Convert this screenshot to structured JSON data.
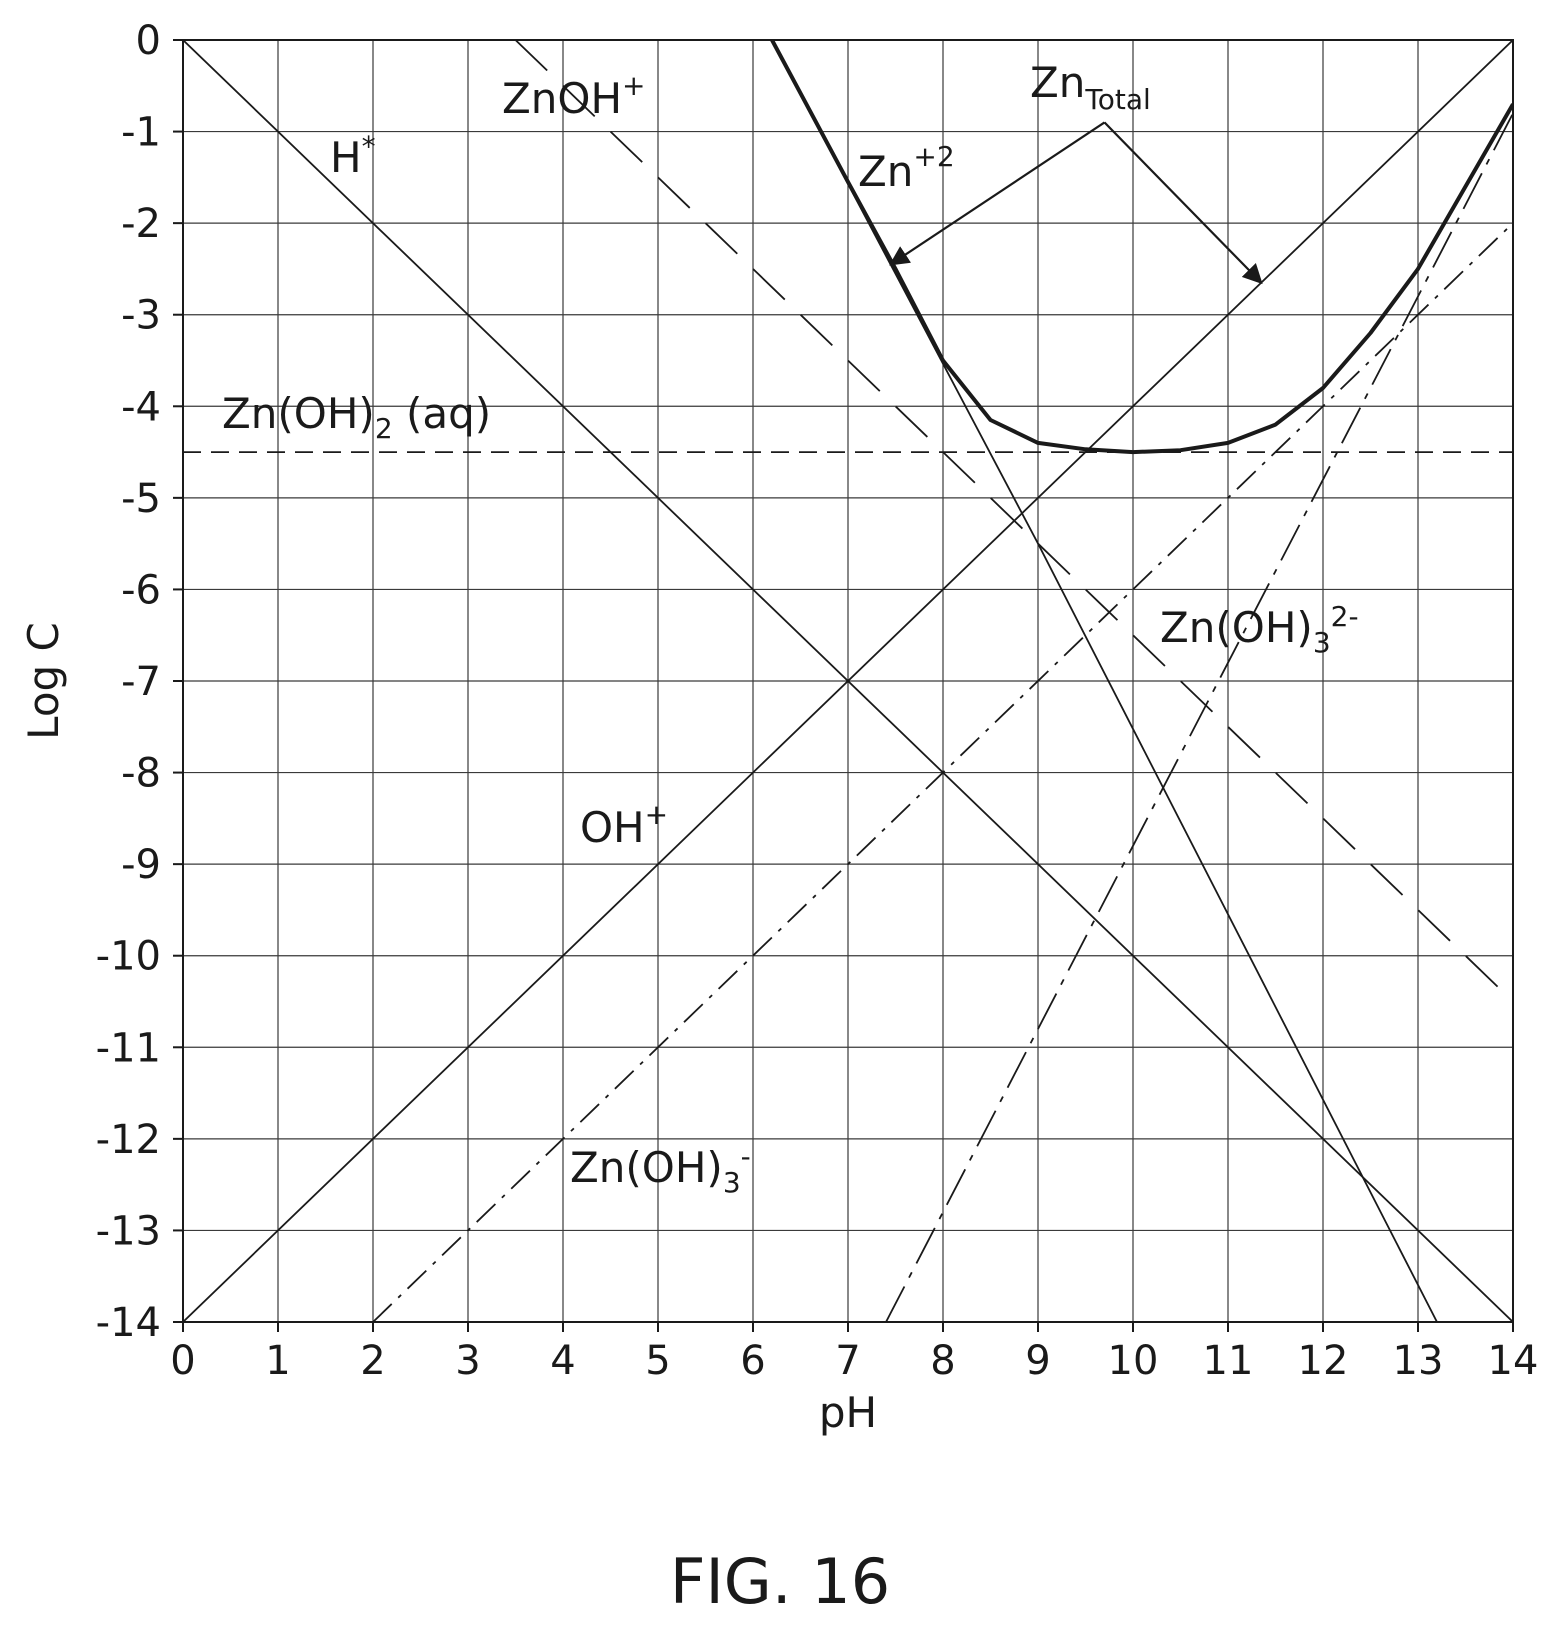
{
  "chart_data": {
    "type": "line",
    "title": "",
    "xlabel": "pH",
    "ylabel": "Log C",
    "xlim": [
      0,
      14
    ],
    "ylim": [
      -14,
      0
    ],
    "grid": true,
    "x_ticks": [
      "0",
      "1",
      "2",
      "3",
      "4",
      "5",
      "6",
      "7",
      "8",
      "9",
      "10",
      "11",
      "12",
      "13",
      "14"
    ],
    "y_ticks": [
      "0",
      "-1",
      "-2",
      "-3",
      "-4",
      "-5",
      "-6",
      "-7",
      "-8",
      "-9",
      "-10",
      "-11",
      "-12",
      "-13",
      "-14"
    ],
    "series": [
      {
        "name": "H*",
        "style": "solid",
        "x": [
          0,
          14
        ],
        "y": [
          0,
          -14
        ]
      },
      {
        "name": "OH+",
        "style": "solid",
        "x": [
          0,
          14
        ],
        "y": [
          -14,
          0
        ]
      },
      {
        "name": "Zn+2",
        "style": "solid",
        "x": [
          6.2,
          9,
          13.2
        ],
        "y": [
          0,
          -5.5,
          -14
        ]
      },
      {
        "name": "ZnOH+",
        "style": "long-dash",
        "x": [
          3.5,
          9.7,
          14
        ],
        "y": [
          0,
          -6.2,
          -10.5
        ]
      },
      {
        "name": "Zn(OH)2 (aq)",
        "style": "dash",
        "x": [
          0,
          14
        ],
        "y": [
          -4.5,
          -4.5
        ]
      },
      {
        "name": "Zn(OH)3-",
        "style": "dash-dot",
        "x": [
          2,
          14
        ],
        "y": [
          -14,
          -2
        ]
      },
      {
        "name": "Zn(OH)3 2-",
        "style": "dash-dot-long",
        "x": [
          7.4,
          14
        ],
        "y": [
          -14,
          -0.8
        ]
      },
      {
        "name": "ZnTotal",
        "style": "bold",
        "x": [
          6.2,
          7,
          7.5,
          8,
          8.5,
          9,
          9.5,
          10,
          10.5,
          11,
          11.5,
          12,
          12.5,
          13,
          13.5,
          14
        ],
        "y": [
          0,
          -1.55,
          -2.5,
          -3.5,
          -4.15,
          -4.4,
          -4.47,
          -4.5,
          -4.48,
          -4.4,
          -4.2,
          -3.8,
          -3.2,
          -2.5,
          -1.6,
          -0.7
        ]
      }
    ],
    "labels": {
      "h": {
        "main": "H",
        "sup": "*"
      },
      "oh": {
        "main": "OH",
        "sup": "+"
      },
      "zn2": {
        "main": "Zn",
        "sup": "+2"
      },
      "znoh": {
        "main": "ZnOH",
        "sup": "+"
      },
      "znoh2": {
        "main": "Zn(OH)",
        "sub": "2",
        "tail": " (aq)"
      },
      "znoh3": {
        "main": "Zn(OH)",
        "sub": "3",
        "sup": "-"
      },
      "znoh3b": {
        "main": "Zn(OH)",
        "sub": "3",
        "sup": "2-"
      },
      "zntotal": {
        "main": "Zn",
        "sub": "Total"
      }
    }
  },
  "caption": "FIG. 16"
}
